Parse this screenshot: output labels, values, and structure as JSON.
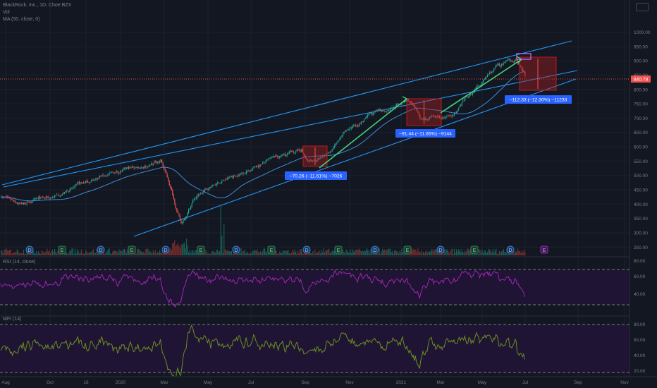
{
  "header": {
    "symbol_line": "BlackRock, Inc., 1D, Choe BZX",
    "vol_line": "Vol",
    "ma_line": "MA (50, close, 0)"
  },
  "price_axis": {
    "ticks": [
      "1000.00",
      "950.00",
      "900.00",
      "850.00",
      "800.00",
      "750.00",
      "700.00",
      "650.00",
      "600.00",
      "550.00",
      "500.00",
      "450.00",
      "400.00",
      "350.00",
      "300.00",
      "250.00"
    ],
    "last_price_label": "840.78"
  },
  "time_axis": {
    "labels": [
      "Aug",
      "Oct",
      "16",
      "2020",
      "Mar",
      "May",
      "Jul",
      "Sep",
      "Nov",
      "2021",
      "Mar",
      "May",
      "Jul",
      "Sep",
      "Nov"
    ]
  },
  "rsi": {
    "title": "RSI (14, close)",
    "ticks": [
      "80.00",
      "60.00",
      "40.00"
    ]
  },
  "osc": {
    "title": "MFI (14)",
    "ticks": [
      "80.00",
      "60.00",
      "40.00",
      "20.00"
    ]
  },
  "markers": {
    "dividend_letter": "D",
    "earnings_letter": "E"
  },
  "annotations": [
    {
      "text": "−70.26 (−11.61%) −7026"
    },
    {
      "text": "−91.44 (−11.85%) −9144"
    },
    {
      "text": "−112.33 (−12.30%) −11233"
    }
  ],
  "colors": {
    "background": "#131722",
    "up_candle": "#26a69a",
    "down_candle": "#ef5350",
    "channel": "#2196f3",
    "ma": "#3d8bd4",
    "trend_arrow": "#43d37a",
    "rsi_line": "#9c27b0",
    "osc_line": "#6b8e23",
    "label_box": "#2962ff",
    "last_price_bg": "#ef5350"
  },
  "chart_data": {
    "type": "candlestick",
    "x_range": [
      "Aug 2019",
      "Nov 2021"
    ],
    "y_range": [
      250,
      1000
    ],
    "price_anchors": [
      {
        "x": "Aug 2019",
        "close": 430
      },
      {
        "x": "Oct 2019",
        "close": 415
      },
      {
        "x": "Jan 2020",
        "close": 510
      },
      {
        "x": "Feb 2020",
        "close": 555
      },
      {
        "x": "Mar 2020",
        "close": 330
      },
      {
        "x": "Apr 2020",
        "close": 480
      },
      {
        "x": "Jun 2020",
        "close": 545
      },
      {
        "x": "Aug 2020",
        "close": 590
      },
      {
        "x": "Sep 2020",
        "close": 540
      },
      {
        "x": "Nov 2020",
        "close": 690
      },
      {
        "x": "Jan 2021",
        "close": 760
      },
      {
        "x": "Feb 2021",
        "close": 700
      },
      {
        "x": "Mar 2021",
        "close": 720
      },
      {
        "x": "May 2021",
        "close": 840
      },
      {
        "x": "Jun 2021",
        "close": 900
      },
      {
        "x": "Jul 2021",
        "close": 840.78
      }
    ],
    "last_price": 840.78,
    "legend_position": "top-left"
  }
}
